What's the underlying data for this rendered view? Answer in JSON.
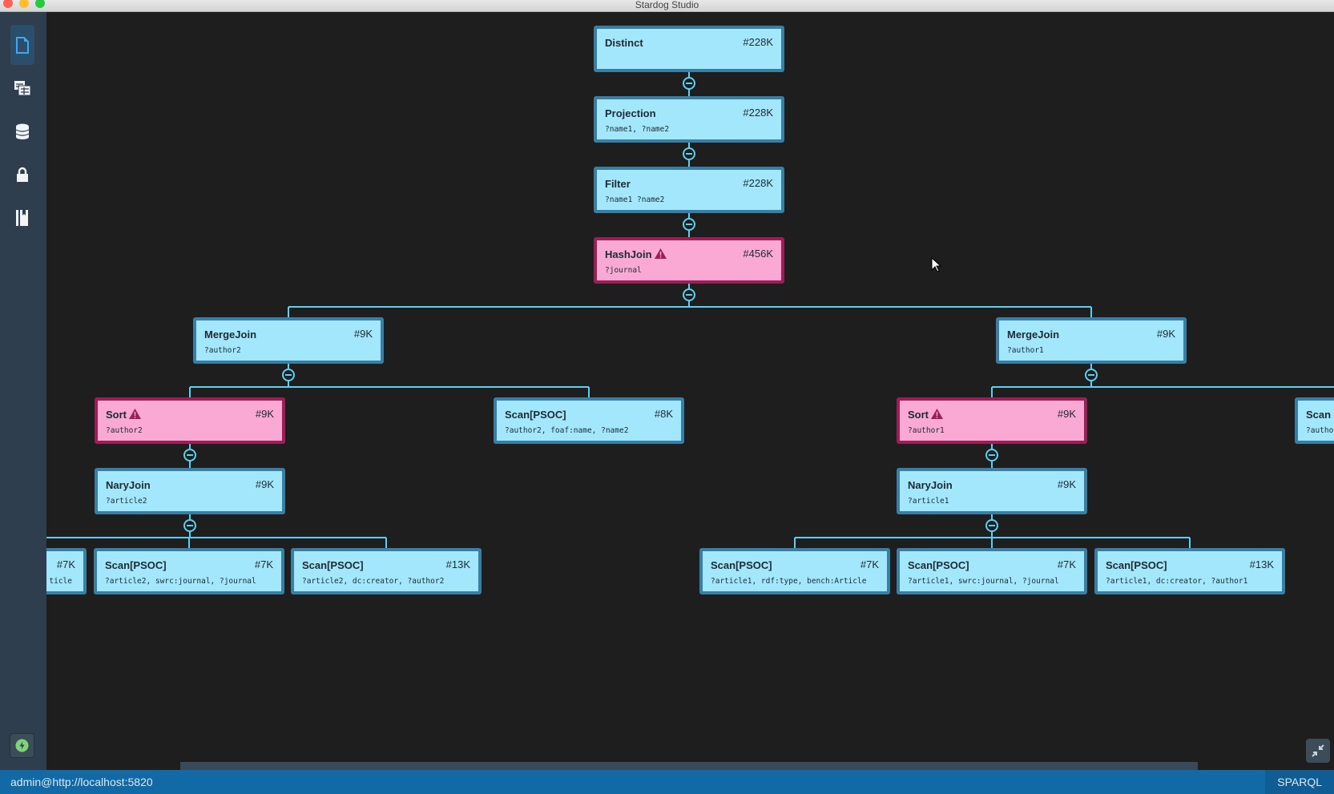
{
  "window": {
    "title": "Stardog Studio"
  },
  "sidebar": {
    "items": [
      {
        "icon": "document-icon",
        "active": true
      },
      {
        "icon": "tables-icon",
        "active": false
      },
      {
        "icon": "database-icon",
        "active": false
      },
      {
        "icon": "lock-icon",
        "active": false
      },
      {
        "icon": "book-icon",
        "active": false
      }
    ],
    "connection_icon": "lightning-icon"
  },
  "colors": {
    "node": "#a2e7fc",
    "node_border": "#3a7fa3",
    "warn": "#f9a9d4",
    "warn_border": "#9a1f56",
    "edge": "#5cd0f0",
    "status": "#1169a6"
  },
  "plan": {
    "nodes": [
      {
        "title": "Distinct",
        "count": "#228K",
        "vars": "",
        "warning": false
      },
      {
        "title": "Projection",
        "count": "#228K",
        "vars": "?name1, ?name2",
        "warning": false
      },
      {
        "title": "Filter",
        "count": "#228K",
        "vars": "?name1 ?name2",
        "warning": false
      },
      {
        "title": "HashJoin",
        "count": "#456K",
        "vars": "?journal",
        "warning": true
      },
      {
        "title": "MergeJoin",
        "count": "#9K",
        "vars": "?author2",
        "warning": false
      },
      {
        "title": "MergeJoin",
        "count": "#9K",
        "vars": "?author1",
        "warning": false
      },
      {
        "title": "Sort",
        "count": "#9K",
        "vars": "?author2",
        "warning": true
      },
      {
        "title": "Scan[PSOC]",
        "count": "#8K",
        "vars": "?author2, foaf:name, ?name2",
        "warning": false
      },
      {
        "title": "Sort",
        "count": "#9K",
        "vars": "?author1",
        "warning": true
      },
      {
        "title": "Scan",
        "count": "",
        "vars": "?autho",
        "warning": false
      },
      {
        "title": "NaryJoin",
        "count": "#9K",
        "vars": "?article2",
        "warning": false
      },
      {
        "title": "NaryJoin",
        "count": "#9K",
        "vars": "?article1",
        "warning": false
      },
      {
        "title": "",
        "count": "#7K",
        "vars": "ticle",
        "warning": false
      },
      {
        "title": "Scan[PSOC]",
        "count": "#7K",
        "vars": "?article2, swrc:journal, ?journal",
        "warning": false
      },
      {
        "title": "Scan[PSOC]",
        "count": "#13K",
        "vars": "?article2, dc:creator, ?author2",
        "warning": false
      },
      {
        "title": "Scan[PSOC]",
        "count": "#7K",
        "vars": "?article1, rdf:type, bench:Article",
        "warning": false
      },
      {
        "title": "Scan[PSOC]",
        "count": "#7K",
        "vars": "?article1, swrc:journal, ?journal",
        "warning": false
      },
      {
        "title": "Scan[PSOC]",
        "count": "#13K",
        "vars": "?article1, dc:creator, ?author1",
        "warning": false
      }
    ]
  },
  "statusbar": {
    "connection": "admin@http://localhost:5820",
    "language": "SPARQL"
  }
}
